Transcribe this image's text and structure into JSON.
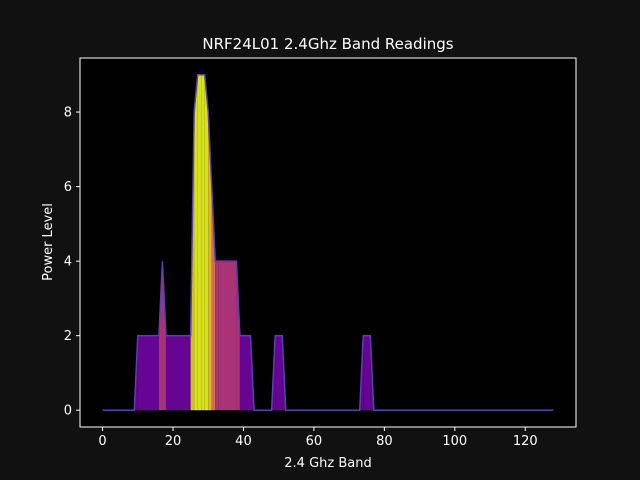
{
  "chart_data": {
    "type": "area",
    "title": "NRF24L01 2.4Ghz Band Readings",
    "xlabel": "2.4 Ghz Band",
    "ylabel": "Power Level",
    "xlim": [
      -6.4,
      134.4
    ],
    "ylim": [
      -0.45,
      9.45
    ],
    "xticks": [
      0,
      20,
      40,
      60,
      80,
      100,
      120
    ],
    "yticks": [
      0,
      2,
      4,
      6,
      8
    ],
    "grid": false,
    "legend": "none",
    "colormap": "plasma",
    "background": "#000000",
    "figure_background": "#111111",
    "x_range": [
      0,
      128
    ],
    "series": [
      {
        "x": [
          0,
          9,
          10,
          16,
          17,
          18,
          25,
          26,
          27,
          28,
          29,
          30,
          31,
          32,
          33,
          38,
          39,
          42,
          43,
          48,
          49,
          51,
          52,
          73,
          74,
          76,
          77,
          128
        ],
        "values": [
          0,
          0,
          2,
          2,
          4,
          2,
          2,
          8,
          9,
          9,
          9,
          8,
          6,
          4,
          4,
          4,
          2,
          2,
          0,
          0,
          2,
          2,
          0,
          0,
          2,
          2,
          0,
          0
        ]
      }
    ]
  }
}
